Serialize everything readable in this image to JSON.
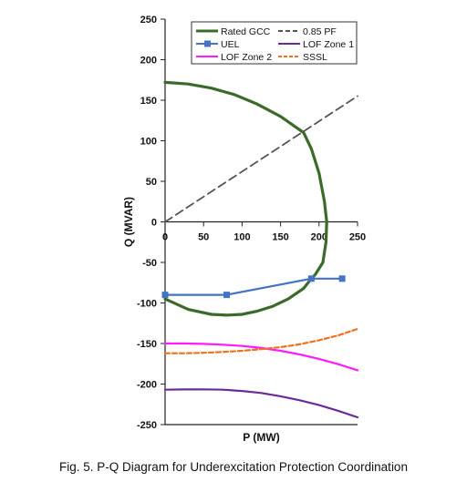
{
  "caption": "Fig. 5.  P-Q Diagram for Underexcitation Protection Coordination",
  "chart_data": {
    "type": "line",
    "title": "",
    "xlabel": "P (MW)",
    "ylabel": "Q (MVAR)",
    "xlim": [
      0,
      250
    ],
    "ylim": [
      -250,
      250
    ],
    "xticks": [
      0,
      50,
      100,
      150,
      200,
      250
    ],
    "yticks": [
      250,
      200,
      150,
      100,
      50,
      0,
      -50,
      -100,
      -150,
      -200,
      -250
    ],
    "grid": false,
    "legend": "top-right",
    "series": [
      {
        "name": "Rated GCC",
        "color": "#3b6b2a",
        "dash": "solid",
        "marker": "none",
        "x": [
          0,
          30,
          60,
          90,
          120,
          150,
          180,
          190,
          200,
          207,
          210,
          209,
          205,
          195,
          190,
          180,
          160,
          140,
          120,
          100,
          80,
          60,
          30,
          0
        ],
        "y": [
          172,
          170,
          165,
          157,
          145,
          130,
          110,
          90,
          60,
          25,
          0,
          -25,
          -50,
          -65,
          -70,
          -82,
          -95,
          -104,
          -110,
          -114,
          -115,
          -114,
          -108,
          -95
        ]
      },
      {
        "name": "0.85 PF",
        "color": "#555555",
        "dash": "dashed",
        "marker": "none",
        "x": [
          0,
          250
        ],
        "y": [
          0,
          155
        ]
      },
      {
        "name": "UEL",
        "color": "#4472c4",
        "dash": "solid",
        "marker": "square",
        "x": [
          0,
          80,
          190,
          230
        ],
        "y": [
          -90,
          -90,
          -70,
          -70
        ]
      },
      {
        "name": "LOF Zone 1",
        "color": "#6a2c9c",
        "dash": "solid",
        "marker": "none",
        "x": [
          0,
          25,
          50,
          75,
          100,
          125,
          150,
          175,
          200,
          225,
          250
        ],
        "y": [
          -207,
          -206.6,
          -206.5,
          -207,
          -208.5,
          -211,
          -215,
          -220,
          -226,
          -233,
          -241
        ]
      },
      {
        "name": "LOF Zone 2",
        "color": "#ff1aff",
        "dash": "solid",
        "marker": "none",
        "x": [
          0,
          25,
          50,
          75,
          100,
          125,
          150,
          175,
          200,
          225,
          250
        ],
        "y": [
          -150,
          -150,
          -150.5,
          -151.5,
          -153,
          -155.5,
          -159,
          -163.5,
          -169,
          -175.5,
          -183
        ]
      },
      {
        "name": "SSSL",
        "color": "#f07020",
        "dash": "dashed",
        "marker": "none",
        "x": [
          0,
          25,
          50,
          75,
          100,
          125,
          150,
          175,
          200,
          225,
          250
        ],
        "y": [
          -162,
          -162,
          -161.5,
          -160.5,
          -159,
          -157,
          -154.5,
          -151,
          -146,
          -140,
          -132
        ]
      }
    ]
  }
}
